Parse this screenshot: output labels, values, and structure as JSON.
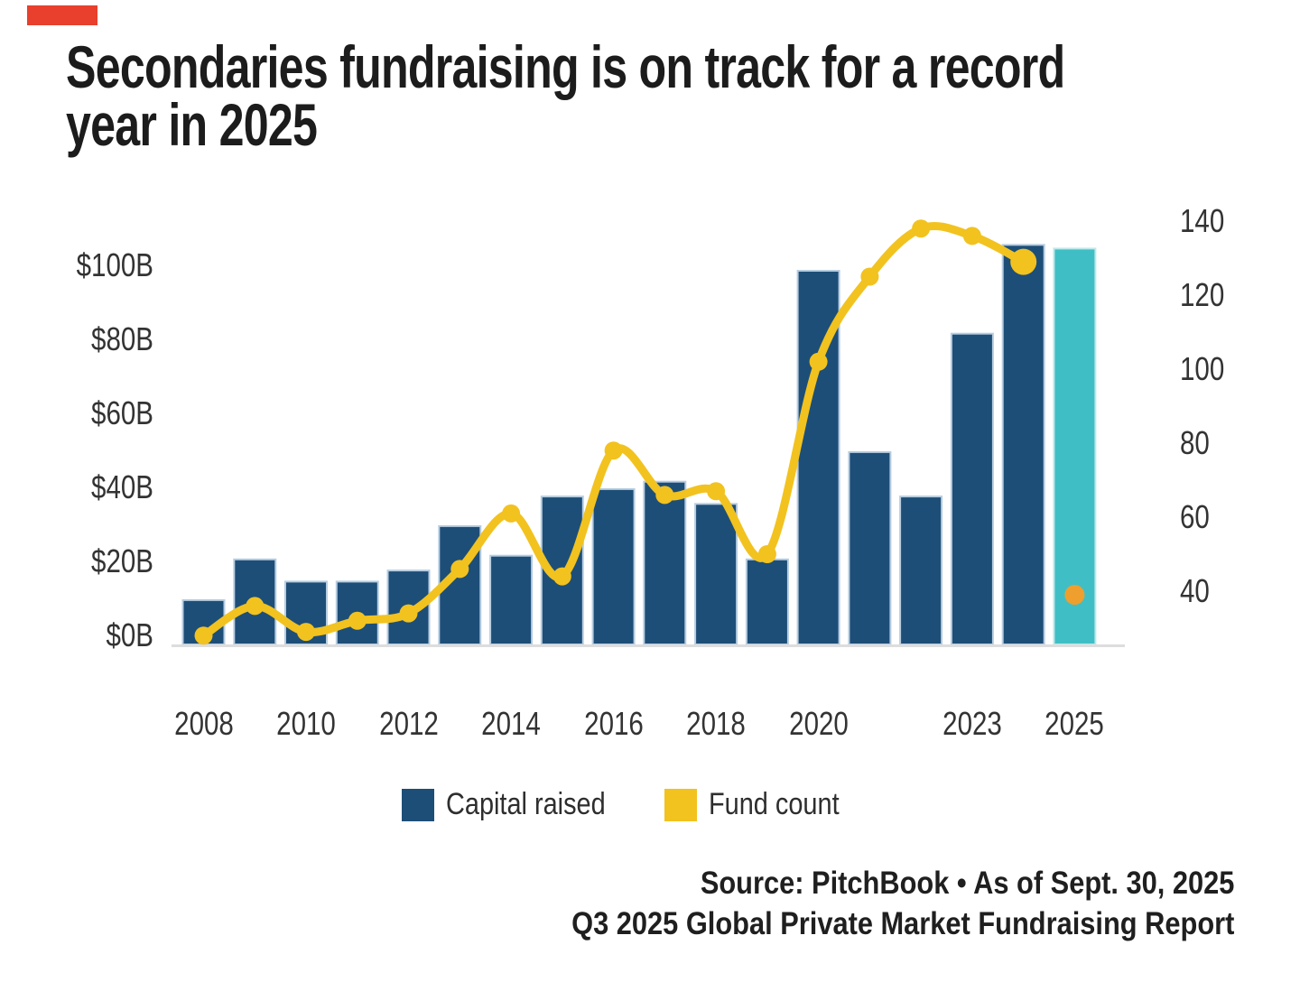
{
  "title_lines": [
    "Secondaries fundraising is on track for a record",
    "year in 2025"
  ],
  "title": "Secondaries fundraising is on track for a record year in 2025",
  "legend": [
    {
      "label": "Capital raised",
      "color": "#1d4e78"
    },
    {
      "label": "Fund count",
      "color": "#f2c21f"
    }
  ],
  "source": {
    "line1": "Source: PitchBook • As of Sept. 30, 2025",
    "line2": "Q3 2025 Global Private Market Fundraising Report"
  },
  "colors": {
    "accent": "#e8402d",
    "bar": "#1d4e78",
    "bar_border": "#b7cde0",
    "bar_highlight": "#3fbfc5",
    "bar_highlight_border": "#bfe8ea",
    "line": "#f2c21f",
    "isolated_point": "#ef9f2e",
    "axis_line": "#dddddd",
    "axis_text": "#333333",
    "title_text": "#1c1c1c"
  },
  "chart_data": {
    "type": "bar+line",
    "title": "Secondaries fundraising is on track for a record year in 2025",
    "categories": [
      "2008",
      "2009",
      "2010",
      "2011",
      "2012",
      "2013",
      "2014",
      "2015",
      "2016",
      "2017",
      "2018",
      "2019",
      "2020",
      "2021",
      "2022",
      "2023",
      "2024",
      "2025"
    ],
    "series": [
      {
        "name": "Capital raised",
        "chart": "bar",
        "axis": "left",
        "unit": "$B",
        "color": "#1d4e78",
        "values": [
          11,
          22,
          16,
          16,
          19,
          31,
          23,
          39,
          41,
          43,
          37,
          22,
          100,
          51,
          39,
          83,
          107,
          106
        ],
        "highlight": {
          "category": "2025",
          "color": "#3fbfc5"
        }
      },
      {
        "name": "Fund count",
        "chart": "line",
        "axis": "right",
        "color": "#f2c21f",
        "values": [
          28,
          36,
          29,
          32,
          34,
          46,
          61,
          44,
          78,
          66,
          67,
          50,
          102,
          125,
          138,
          136,
          129,
          null
        ],
        "isolated_points": [
          {
            "category": "2025",
            "value": 39,
            "color": "#ef9f2e"
          }
        ]
      }
    ],
    "left_axis": {
      "ticks": [
        {
          "label": "$0B",
          "value": 0
        },
        {
          "label": "$20B",
          "value": 20
        },
        {
          "label": "$40B",
          "value": 40
        },
        {
          "label": "$60B",
          "value": 60
        },
        {
          "label": "$80B",
          "value": 80
        },
        {
          "label": "$100B",
          "value": 100
        }
      ],
      "range": [
        0,
        112
      ]
    },
    "right_axis": {
      "ticks": [
        {
          "label": "40",
          "value": 40
        },
        {
          "label": "60",
          "value": 60
        },
        {
          "label": "80",
          "value": 80
        },
        {
          "label": "100",
          "value": 100
        },
        {
          "label": "120",
          "value": 120
        },
        {
          "label": "140",
          "value": 140
        }
      ],
      "range": [
        26,
        145
      ]
    },
    "x_axis": {
      "tick_labels": [
        {
          "label": "2008",
          "category": "2008"
        },
        {
          "label": "2010",
          "category": "2010"
        },
        {
          "label": "2012",
          "category": "2012"
        },
        {
          "label": "2014",
          "category": "2014"
        },
        {
          "label": "2016",
          "category": "2016"
        },
        {
          "label": "2018",
          "category": "2018"
        },
        {
          "label": "2020",
          "category": "2020"
        },
        {
          "label": "2023",
          "category": "2023"
        },
        {
          "label": "2025",
          "category": "2025"
        }
      ]
    },
    "grid": false,
    "legend_position": "bottom-center"
  }
}
